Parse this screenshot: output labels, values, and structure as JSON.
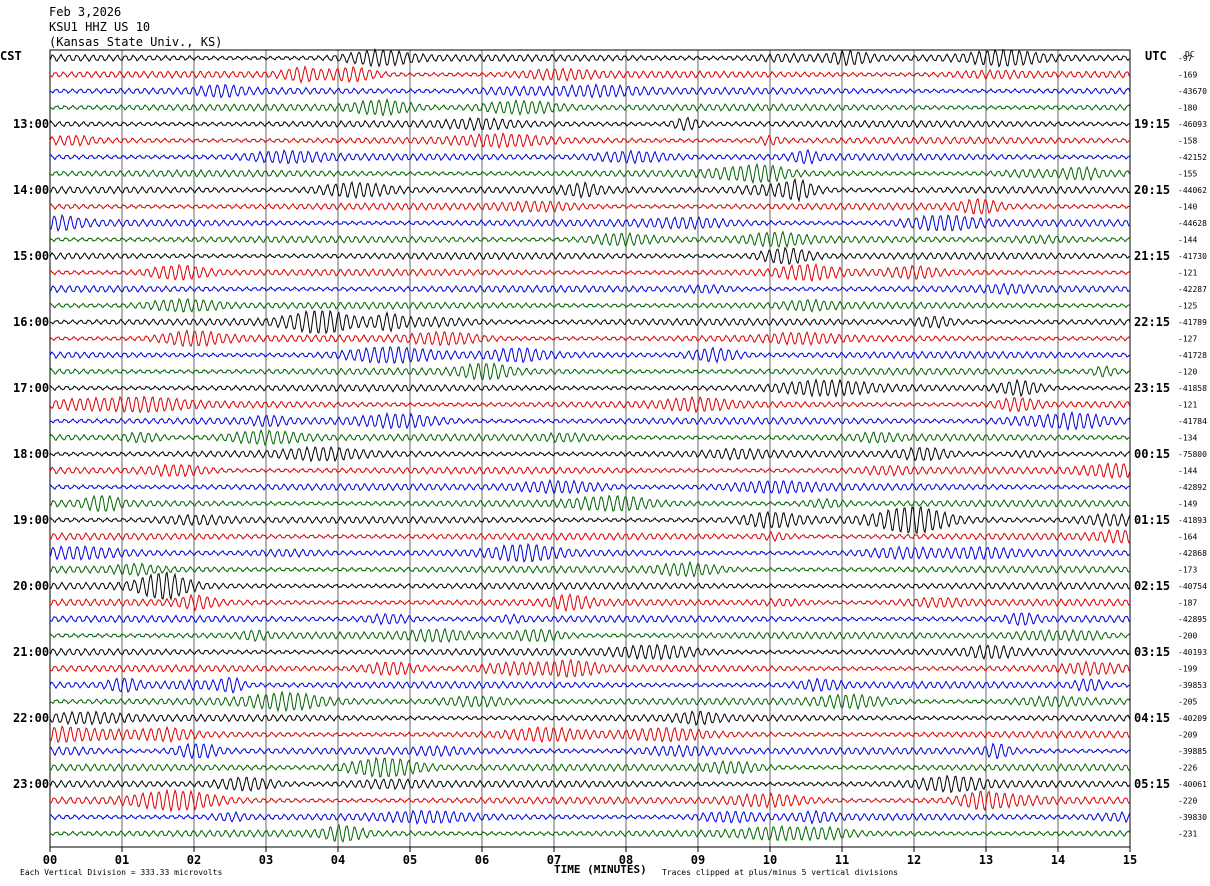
{
  "header": {
    "date": "Feb 3,2026",
    "station": "KSU1 HHZ US 10",
    "location": "(Kansas State Univ., KS)"
  },
  "left_timezone": "CST",
  "right_timezone": "UTC",
  "dc_label": "DC",
  "footer": {
    "division": "Each Vertical Division =  333.33 microvolts",
    "xlabel": "TIME (MINUTES)",
    "clip_note": "Traces clipped at plus/minus 5 vertical divisions"
  },
  "colors": [
    "#000000",
    "#dd0000",
    "#0000dd",
    "#006400"
  ],
  "chart_data": {
    "type": "line",
    "title": "KSU1 HHZ US 10",
    "xlabel": "TIME (MINUTES)",
    "xlim": [
      0,
      15
    ],
    "x_ticks": [
      "00",
      "01",
      "02",
      "03",
      "04",
      "05",
      "06",
      "07",
      "08",
      "09",
      "10",
      "11",
      "12",
      "13",
      "14",
      "15"
    ],
    "left_hour_labels": [
      "13:00",
      "14:00",
      "15:00",
      "16:00",
      "17:00",
      "18:00",
      "19:00",
      "20:00",
      "21:00",
      "22:00",
      "23:00"
    ],
    "right_hour_labels": [
      "19:15",
      "20:15",
      "21:15",
      "22:15",
      "23:15",
      "00:15",
      "01:15",
      "02:15",
      "03:15",
      "04:15",
      "05:15"
    ],
    "trace_count": 48,
    "traces_per_hour": 4,
    "dc_offsets": [
      "-97",
      "-169",
      "-43670",
      "-180",
      "-46093",
      "-158",
      "-42152",
      "-155",
      "-44062",
      "-140",
      "-44628",
      "-144",
      "-41730",
      "-121",
      "-42287",
      "-125",
      "-41789",
      "-127",
      "-41728",
      "-120",
      "-41858",
      "-121",
      "-41784",
      "-134",
      "-75800",
      "-144",
      "-42892",
      "-149",
      "-41893",
      "-164",
      "-42868",
      "-173",
      "-40754",
      "-187",
      "-42895",
      "-200",
      "-40193",
      "-199",
      "-39853",
      "-205",
      "-40209",
      "-209",
      "-39885",
      "-226",
      "-40061",
      "-220",
      "-39830",
      "-231"
    ]
  }
}
